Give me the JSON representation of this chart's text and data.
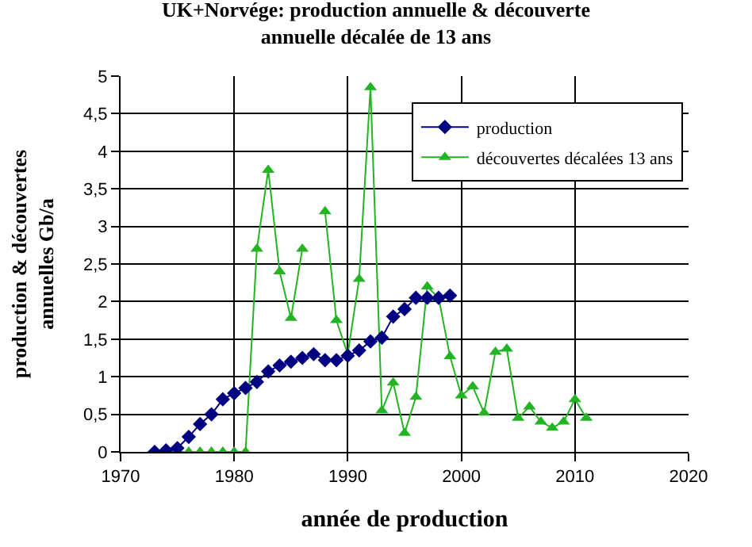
{
  "chart_data": {
    "type": "line",
    "title": "UK+Norvége: production annuelle & découverte\nannuelle décalée de 13 ans",
    "xlabel": "année de production",
    "ylabel": "production & découvertes\nannuelles Gb/a",
    "xlim": [
      1970,
      2020
    ],
    "xticks": [
      1970,
      1980,
      1990,
      2000,
      2010,
      2020
    ],
    "ylim": [
      0,
      5
    ],
    "yticks": [
      0,
      {
        "value": 0.5,
        "label": "0,5"
      },
      1,
      {
        "value": 1.5,
        "label": "1,5"
      },
      2,
      {
        "value": 2.5,
        "label": "2,5"
      },
      3,
      {
        "value": 3.5,
        "label": "3,5"
      },
      4,
      {
        "value": 4.5,
        "label": "4,5"
      },
      5
    ],
    "grid": true,
    "legend": "top right",
    "series": [
      {
        "name": "production",
        "color": "#000080",
        "marker": "diamond",
        "x": [
          1973,
          1974,
          1975,
          1976,
          1977,
          1978,
          1979,
          1980,
          1981,
          1982,
          1983,
          1984,
          1985,
          1986,
          1987,
          1988,
          1989,
          1990,
          1991,
          1992,
          1993,
          1994,
          1995,
          1996,
          1997,
          1998,
          1999
        ],
        "values": [
          0,
          0.02,
          0.05,
          0.2,
          0.37,
          0.5,
          0.7,
          0.78,
          0.85,
          0.93,
          1.07,
          1.15,
          1.2,
          1.25,
          1.3,
          1.22,
          1.22,
          1.28,
          1.35,
          1.47,
          1.52,
          1.8,
          1.9,
          2.05,
          2.05,
          2.05,
          2.08
        ]
      },
      {
        "name": "découvertes décalées 13 ans",
        "color": "#22b422",
        "marker": "triangle",
        "x": [
          1973,
          1974,
          1975,
          1976,
          1977,
          1978,
          1979,
          1980,
          1981,
          1982,
          1983,
          1984,
          1985,
          1986,
          1987,
          1988,
          1989,
          1990,
          1991,
          1992,
          1993,
          1994,
          1995,
          1996,
          1997,
          1998,
          1999,
          2000,
          2001,
          2002,
          2003,
          2004,
          2005,
          2006,
          2007,
          2008,
          2009,
          2010,
          2011
        ],
        "values": [
          0,
          0,
          0,
          0,
          0,
          0,
          0,
          0,
          0,
          2.7,
          3.75,
          2.4,
          1.78,
          2.7,
          null,
          3.2,
          1.75,
          1.3,
          2.3,
          4.85,
          0.55,
          0.92,
          0.25,
          0.73,
          2.2,
          2.05,
          1.27,
          0.75,
          0.87,
          0.52,
          1.33,
          1.37,
          0.45,
          0.6,
          0.4,
          0.32,
          0.4,
          0.7,
          0.45
        ]
      }
    ]
  }
}
